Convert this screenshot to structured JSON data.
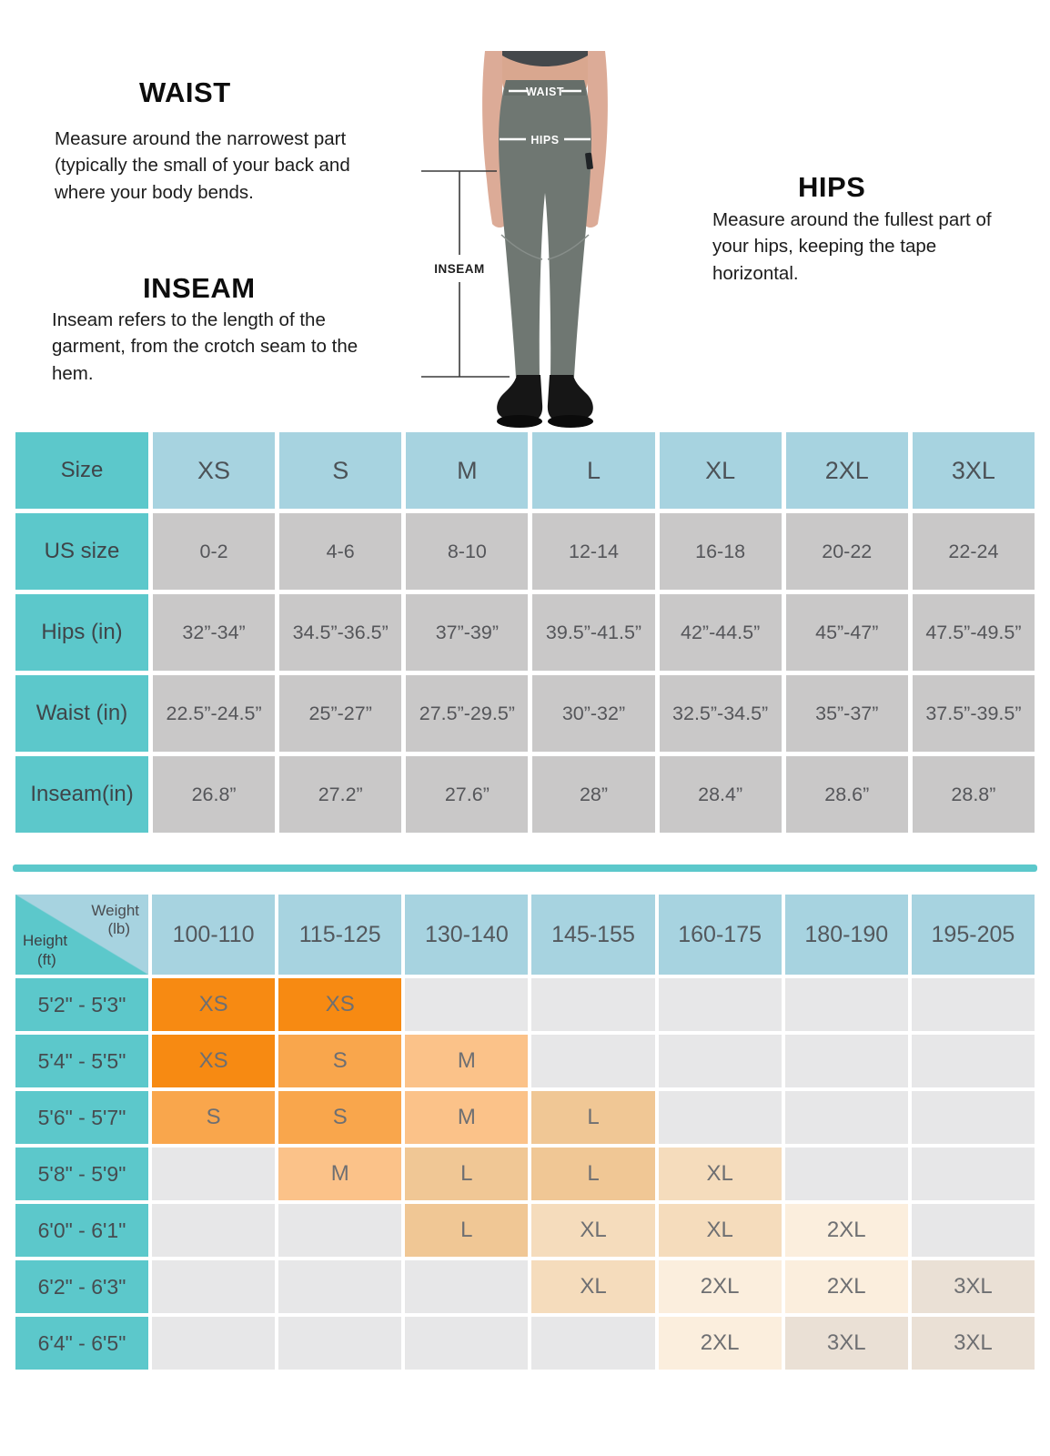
{
  "measurement_guide": {
    "waist": {
      "title": "WAIST",
      "description": "Measure around the narrowest part (typically the small of your back and where your body bends."
    },
    "inseam": {
      "title": "INSEAM",
      "description": "Inseam refers to the length of the garment, from the crotch seam to the hem."
    },
    "hips": {
      "title": "HIPS",
      "description": "Measure around the fullest part of your hips, keeping the tape horizontal."
    },
    "figure": {
      "waist_label": "WAIST",
      "hips_label": "HIPS",
      "inseam_label": "INSEAM"
    }
  },
  "size_table": {
    "header": {
      "label": "Size",
      "sizes": [
        "XS",
        "S",
        "M",
        "L",
        "XL",
        "2XL",
        "3XL"
      ]
    },
    "rows": [
      {
        "label": "US size",
        "values": [
          "0-2",
          "4-6",
          "8-10",
          "12-14",
          "16-18",
          "20-22",
          "22-24"
        ]
      },
      {
        "label": "Hips (in)",
        "values": [
          "32”-34”",
          "34.5”-36.5”",
          "37”-39”",
          "39.5”-41.5”",
          "42”-44.5”",
          "45”-47”",
          "47.5”-49.5”"
        ]
      },
      {
        "label": "Waist (in)",
        "values": [
          "22.5”-24.5”",
          "25”-27”",
          "27.5”-29.5”",
          "30”-32”",
          "32.5”-34.5”",
          "35”-37”",
          "37.5”-39.5”"
        ]
      },
      {
        "label": "Inseam(in)",
        "values": [
          "26.8”",
          "27.2”",
          "27.6”",
          "28”",
          "28.4”",
          "28.6”",
          "28.8”"
        ]
      }
    ]
  },
  "fit_matrix": {
    "corner": {
      "top_label": "Weight",
      "top_unit": "(lb)",
      "side_label": "Height",
      "side_unit": "(ft)"
    },
    "weight_columns": [
      "100-110",
      "115-125",
      "130-140",
      "145-155",
      "160-175",
      "180-190",
      "195-205"
    ],
    "rows": [
      {
        "height": "5'2\" - 5'3\"",
        "cells": [
          "XS",
          "XS",
          "",
          "",
          "",
          "",
          ""
        ]
      },
      {
        "height": "5'4\" - 5'5\"",
        "cells": [
          "XS",
          "S",
          "M",
          "",
          "",
          "",
          ""
        ]
      },
      {
        "height": "5'6\" - 5'7\"",
        "cells": [
          "S",
          "S",
          "M",
          "L",
          "",
          "",
          ""
        ]
      },
      {
        "height": "5'8\" - 5'9\"",
        "cells": [
          "",
          "M",
          "L",
          "L",
          "XL",
          "",
          ""
        ]
      },
      {
        "height": "6'0\" - 6'1\"",
        "cells": [
          "",
          "",
          "L",
          "XL",
          "XL",
          "2XL",
          ""
        ]
      },
      {
        "height": "6'2\" - 6'3\"",
        "cells": [
          "",
          "",
          "",
          "XL",
          "2XL",
          "2XL",
          "3XL"
        ]
      },
      {
        "height": "6'4\" - 6'5\"",
        "cells": [
          "",
          "",
          "",
          "",
          "2XL",
          "3XL",
          "3XL"
        ]
      }
    ]
  },
  "colors": {
    "teal": "#5cc8cb",
    "header_blue": "#a7d3e0",
    "data_gray": "#c9c8c8",
    "empty_gray": "#e7e7e8",
    "size_fill": {
      "XS": "#f78a12",
      "S": "#f9a64c",
      "M": "#fbc289",
      "L": "#f0c795",
      "XL": "#f5dcbc",
      "2XL": "#fbeedd",
      "3XL": "#eae0d5"
    }
  }
}
